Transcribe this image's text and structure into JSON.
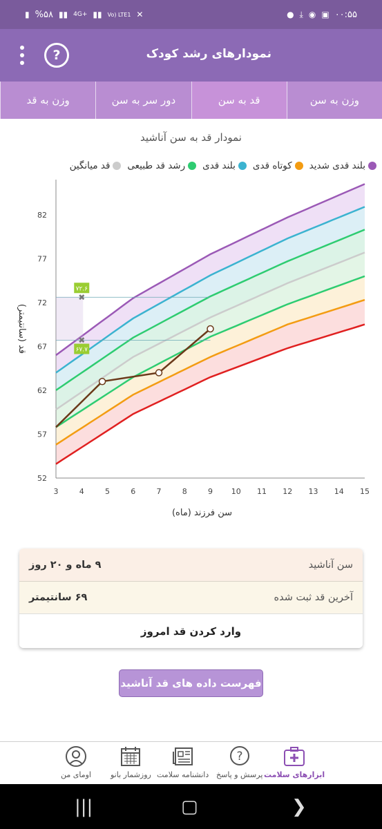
{
  "status_bar": {
    "time": "۰۰:۵۵",
    "battery": "%۵۸",
    "network_a": "4G+",
    "network_b": "Vo) LTE1"
  },
  "app_bar": {
    "title": "نمودارهای رشد کودک",
    "help_icon": "help-circle-icon",
    "more_icon": "more-vertical-icon"
  },
  "tabs": [
    {
      "label": "وزن به سن",
      "active": false
    },
    {
      "label": "قد به سن",
      "active": true
    },
    {
      "label": "دور سر به سن",
      "active": false
    },
    {
      "label": "وزن به قد",
      "active": false
    }
  ],
  "chart_title": "نمودار قد به سن آناشید",
  "legend": [
    {
      "label": "بلند قدی شدید",
      "color": "#9b59b6"
    },
    {
      "label": "کوتاه قدی",
      "color": "#f39c12"
    },
    {
      "label": "بلند قدی",
      "color": "#3bb3d0"
    },
    {
      "label": "رشد قد طبیعی",
      "color": "#2ecc71"
    },
    {
      "label": "قد میانگین",
      "color": "#cccccc"
    }
  ],
  "chart_data": {
    "type": "line",
    "xlabel": "سن فرزند (ماه)",
    "ylabel": "قد (سانتیمتر)",
    "xlim": [
      3,
      15
    ],
    "ylim": [
      52,
      86
    ],
    "xticks": [
      3,
      4,
      5,
      6,
      7,
      8,
      9,
      10,
      11,
      12,
      13,
      14,
      15
    ],
    "yticks": [
      52,
      57,
      62,
      67,
      72,
      77,
      82
    ],
    "reference_curves": [
      {
        "color": "#9b59b6",
        "x": [
          3,
          6,
          9,
          12,
          15
        ],
        "y": [
          66,
          72.5,
          77.5,
          81.7,
          85.5
        ]
      },
      {
        "color": "#3bb3d0",
        "x": [
          3,
          6,
          9,
          12,
          15
        ],
        "y": [
          64,
          70.2,
          75.1,
          79.3,
          82.9
        ]
      },
      {
        "color": "#2ecc71",
        "x": [
          3,
          6,
          9,
          12,
          15
        ],
        "y": [
          62,
          68,
          72.7,
          76.7,
          80.3
        ]
      },
      {
        "color": "#cccccc",
        "x": [
          3,
          6,
          9,
          12,
          15
        ],
        "y": [
          59.8,
          65.8,
          70.3,
          74.2,
          77.7
        ]
      },
      {
        "color": "#2ecc71",
        "x": [
          3,
          6,
          9,
          12,
          15
        ],
        "y": [
          57.8,
          63.5,
          68.1,
          71.8,
          75
        ]
      },
      {
        "color": "#f39c12",
        "x": [
          3,
          6,
          9,
          12,
          15
        ],
        "y": [
          55.8,
          61.5,
          65.8,
          69.5,
          72.3
        ]
      },
      {
        "color": "#e02020",
        "x": [
          3,
          6,
          9,
          12,
          15
        ],
        "y": [
          53.6,
          59.3,
          63.5,
          66.8,
          69.5
        ]
      }
    ],
    "series": [
      {
        "x": [
          3,
          4.8,
          7,
          9
        ],
        "y": [
          57.8,
          63,
          64,
          69
        ]
      }
    ],
    "markers": [
      {
        "x": 4,
        "y": 72.6,
        "label": "۷۲.۶"
      },
      {
        "x": 4,
        "y": 67.7,
        "label": "۶۷.۷"
      }
    ]
  },
  "info": {
    "name_label": "سن آناشید",
    "name_value": "۹ ماه و ۲۰ روز",
    "last_label": "آخرین قد ثبت شده",
    "last_value": "۶۹ سانتیمتر",
    "enter_label": "وارد کردن قد امروز"
  },
  "list_button": "فهرست داده های قد آناشید",
  "bottom_nav": [
    {
      "label": "ابزارهای سلامت",
      "icon": "medical-kit-icon",
      "active": true
    },
    {
      "label": "پرسش و پاسخ",
      "icon": "question-bubble-icon",
      "active": false
    },
    {
      "label": "دانشنامه سلامت",
      "icon": "newspaper-icon",
      "active": false
    },
    {
      "label": "روزشمار بانو",
      "icon": "calendar-icon",
      "active": false
    },
    {
      "label": "اومای من",
      "icon": "profile-avatar-icon",
      "active": false
    }
  ]
}
